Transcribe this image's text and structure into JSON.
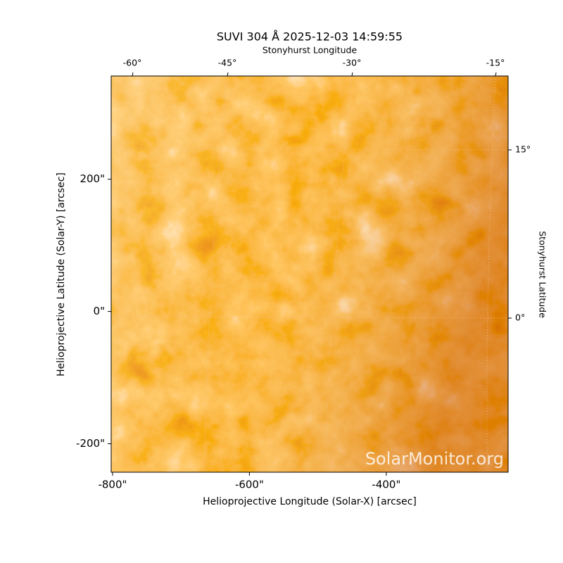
{
  "chart_data": {
    "type": "image",
    "title": "SUVI 304 Å 2025-12-03 14:59:55",
    "xlabel": "Helioprojective Longitude (Solar-X) [arcsec]",
    "ylabel": "Helioprojective Latitude (Solar-Y) [arcsec]",
    "top_label": "Stonyhurst Longitude",
    "right_label": "Stonyhurst Latitude",
    "xlim": [
      -802,
      -222
    ],
    "ylim": [
      -243,
      356
    ],
    "xticks": [
      {
        "value": -800,
        "label": "-800\""
      },
      {
        "value": -600,
        "label": "-600\""
      },
      {
        "value": -400,
        "label": "-400\""
      }
    ],
    "yticks": [
      {
        "value": -200,
        "label": "-200\""
      },
      {
        "value": 0,
        "label": "0\""
      },
      {
        "value": 200,
        "label": "200\""
      }
    ],
    "top_ticks": [
      "-60°",
      "-45°",
      "-30°",
      "-15°"
    ],
    "right_ticks": [
      "15°",
      "0°"
    ],
    "watermark": "SolarMonitor.org"
  }
}
